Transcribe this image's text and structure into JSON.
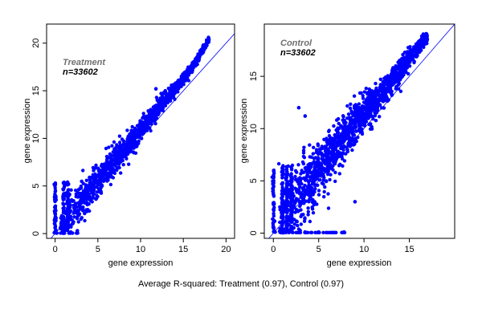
{
  "caption": "Average R-squared: Treatment (0.97), Control (0.97)",
  "colors": {
    "points": "#0000ff",
    "reference_line": "#0000ff",
    "axes": "#000000"
  },
  "chart_data": [
    {
      "type": "scatter",
      "title": "Treatment",
      "n_label": "n=33602",
      "xlabel": "gene expression",
      "ylabel": "gene expression",
      "xlim": [
        -1,
        21
      ],
      "ylim": [
        -0.5,
        22
      ],
      "xticks": [
        0,
        5,
        10,
        15,
        20
      ],
      "yticks": [
        0,
        5,
        10,
        15,
        20
      ],
      "reference_line": {
        "slope": 1,
        "intercept": 0
      },
      "points_description_ranges": {
        "bulk_band": [
          [
            0,
            0
          ],
          [
            1,
            1.2
          ],
          [
            2,
            2.4
          ],
          [
            4,
            4.5
          ],
          [
            6,
            6.6
          ],
          [
            8,
            8.7
          ],
          [
            10,
            10.9
          ],
          [
            12,
            13.1
          ],
          [
            14,
            15.2
          ],
          [
            16,
            17.4
          ],
          [
            18,
            20.4
          ]
        ],
        "left_columns_x": [
          0,
          1,
          1.5
        ],
        "left_columns_ymax": 5.5
      },
      "outliers": [
        [
          11.8,
          15.2
        ],
        [
          9.2,
          8.5
        ],
        [
          2.6,
          0.3
        ],
        [
          0.1,
          0.1
        ]
      ]
    },
    {
      "type": "scatter",
      "title": "Control",
      "n_label": "n=33602",
      "xlabel": "gene expression",
      "ylabel": "gene expression",
      "xlim": [
        -1,
        20
      ],
      "ylim": [
        -0.5,
        20
      ],
      "xticks": [
        0,
        5,
        10,
        15
      ],
      "yticks": [
        0,
        5,
        10,
        15
      ],
      "reference_line": {
        "slope": 1,
        "intercept": 0
      },
      "points_description_ranges": {
        "bulk_band": [
          [
            0,
            0
          ],
          [
            2,
            2.5
          ],
          [
            4,
            5
          ],
          [
            6,
            7.2
          ],
          [
            8,
            9.4
          ],
          [
            10,
            11.4
          ],
          [
            12,
            13.5
          ],
          [
            14,
            15.6
          ],
          [
            16,
            17.8
          ],
          [
            17,
            18.8
          ]
        ],
        "left_columns_x": [
          0,
          1,
          1.5,
          2
        ],
        "left_columns_ymax": 6.5
      },
      "outliers": [
        [
          2.8,
          12.0
        ],
        [
          3.5,
          11.2
        ],
        [
          9.0,
          3.0
        ],
        [
          7.8,
          0.1
        ],
        [
          5.0,
          0.1
        ],
        [
          3.5,
          0.1
        ],
        [
          0.2,
          0.1
        ]
      ]
    }
  ]
}
